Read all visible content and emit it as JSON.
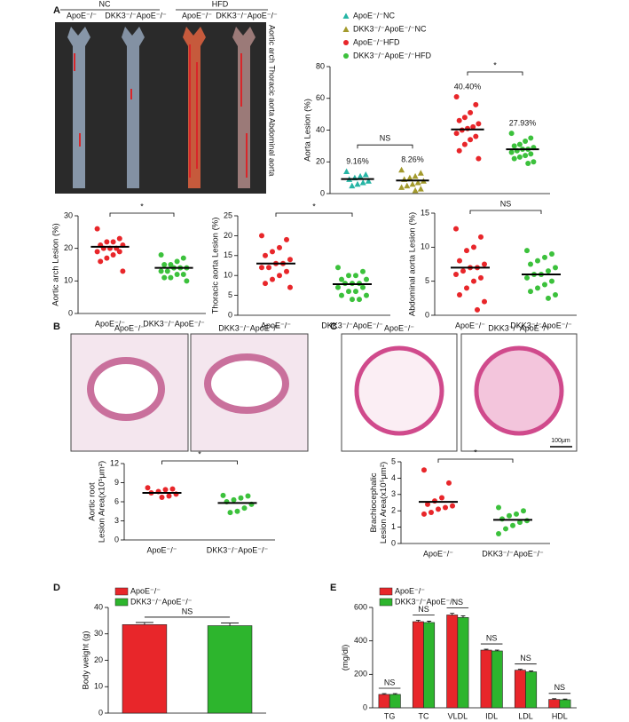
{
  "panel_labels": [
    "A",
    "B",
    "C",
    "D",
    "E"
  ],
  "images": {
    "aorta": {
      "groups": [
        "NC",
        "HFD"
      ],
      "labels": [
        "ApoE⁻/⁻",
        "DKK3⁻/⁻ApoE⁻/⁻",
        "ApoE⁻/⁻",
        "DKK3⁻/⁻ApoE⁻/⁻"
      ],
      "regions": "Aortic arch Thoracic aorta Abdominal aorta"
    },
    "aortic_root": {
      "labels": [
        "ApoE⁻/⁻",
        "DKK3⁻/⁻ApoE⁻/⁻"
      ]
    },
    "brachiocephalic": {
      "labels": [
        "ApoE⁻/⁻",
        "DKK3⁻/⁻ApoE⁻/⁻"
      ],
      "scale": "100μm"
    }
  },
  "chart_data": [
    {
      "type": "dot",
      "y_label": [
        "Aorta Lesion (%)"
      ],
      "ylim": [
        0,
        80
      ],
      "yticks": [
        0,
        20,
        40,
        60,
        80
      ],
      "groups": [
        {
          "name": "ApoE⁻/⁻NC",
          "color": "#26b5a5",
          "marker": "triangle",
          "values": [
            14,
            12,
            11,
            10,
            9,
            8,
            7,
            6,
            5
          ],
          "mean": 9.16,
          "mean_label": "9.16%"
        },
        {
          "name": "DKK3⁻/⁻ApoE⁻/⁻NC",
          "color": "#a39a2c",
          "marker": "triangle",
          "values": [
            15,
            13,
            11,
            10,
            9,
            8,
            7,
            6,
            5,
            4,
            3,
            2
          ],
          "mean": 8.26,
          "mean_label": "8.26%"
        },
        {
          "name": "ApoE⁻/⁻HFD",
          "color": "#e8262a",
          "marker": "circle",
          "values": [
            61,
            56,
            51,
            48,
            46,
            44,
            42,
            41,
            40,
            38,
            36,
            34,
            31,
            27,
            22
          ],
          "mean": 40.4,
          "mean_label": "40.40%"
        },
        {
          "name": "DKK3⁻/⁻ApoE⁻/⁻HFD",
          "color": "#3cc13c",
          "marker": "circle",
          "values": [
            38,
            35,
            33,
            31,
            30,
            29,
            28,
            28,
            27,
            26,
            25,
            24,
            23,
            22,
            20,
            19
          ],
          "mean": 27.93,
          "mean_label": "27.93%"
        }
      ],
      "annotations": [
        "NS",
        "*"
      ]
    },
    {
      "type": "dot",
      "y_label": [
        "Aortic arch Lesion (%)"
      ],
      "ylim": [
        0,
        30
      ],
      "yticks": [
        0,
        10,
        20,
        30
      ],
      "categories": [
        "ApoE⁻/⁻",
        "DKK3⁻/⁻ApoE⁻/⁻"
      ],
      "groups": [
        {
          "color": "#e8262a",
          "marker": "circle",
          "values": [
            26,
            23,
            22,
            22,
            21,
            21,
            20,
            20,
            20,
            19,
            19,
            18,
            17,
            16,
            13
          ],
          "mean": 20.5
        },
        {
          "color": "#3cc13c",
          "marker": "circle",
          "values": [
            18,
            17,
            16,
            15,
            15,
            14,
            14,
            14,
            13,
            13,
            12,
            12,
            11,
            11,
            10
          ],
          "mean": 14
        }
      ],
      "annotations": [
        "*"
      ]
    },
    {
      "type": "dot",
      "y_label": [
        "Thoracic aorta Lesion (%)"
      ],
      "ylim": [
        0,
        25
      ],
      "yticks": [
        0,
        5,
        10,
        15,
        20,
        25
      ],
      "categories": [
        "ApoE⁻/⁻",
        "DKK3⁻/⁻ApoE⁻/⁻"
      ],
      "groups": [
        {
          "color": "#e8262a",
          "marker": "circle",
          "values": [
            20,
            19,
            17,
            16,
            15,
            14,
            13,
            13,
            12,
            12,
            11,
            10,
            9,
            8,
            7
          ],
          "mean": 13
        },
        {
          "color": "#3cc13c",
          "marker": "circle",
          "values": [
            12,
            11,
            10,
            10,
            9,
            9,
            8,
            8,
            8,
            7,
            7,
            6,
            6,
            5,
            5,
            4,
            4
          ],
          "mean": 7.8
        }
      ],
      "annotations": [
        "*"
      ]
    },
    {
      "type": "dot",
      "y_label": [
        "Abdominal aorta Lesion (%)"
      ],
      "ylim": [
        0,
        15
      ],
      "yticks": [
        0,
        5,
        10,
        15
      ],
      "categories": [
        "ApoE⁻/⁻",
        "DKK3⁻/⁻ApoE⁻/⁻"
      ],
      "groups": [
        {
          "color": "#e8262a",
          "marker": "circle",
          "values": [
            12.7,
            11.5,
            10,
            9.5,
            8,
            7.5,
            7,
            7,
            6.5,
            6,
            5.5,
            5,
            4,
            3,
            2,
            0.8
          ],
          "mean": 7
        },
        {
          "color": "#3cc13c",
          "marker": "circle",
          "values": [
            9.5,
            9,
            8.5,
            8,
            7.5,
            7,
            6.5,
            6,
            6,
            5.5,
            5,
            4.5,
            4,
            3.5,
            3,
            2.5
          ],
          "mean": 6
        }
      ],
      "annotations": [
        "NS"
      ]
    },
    {
      "type": "dot",
      "y_label": [
        "Aortic root",
        "Lesion Area(x10⁵μm²)"
      ],
      "ylim": [
        0,
        12
      ],
      "yticks": [
        0,
        3,
        6,
        9,
        12
      ],
      "categories": [
        "ApoE⁻/⁻",
        "DKK3⁻/⁻ApoE⁻/⁻"
      ],
      "groups": [
        {
          "color": "#e8262a",
          "marker": "circle",
          "values": [
            8.2,
            8,
            7.9,
            7.6,
            7.4,
            7.2,
            6.9,
            6.7
          ],
          "mean": 7.4
        },
        {
          "color": "#3cc13c",
          "marker": "circle",
          "values": [
            7,
            6.9,
            6.6,
            6.3,
            6,
            5.6,
            5,
            4.5,
            4.3
          ],
          "mean": 5.8
        }
      ],
      "annotations": [
        "*"
      ]
    },
    {
      "type": "dot",
      "y_label": [
        "Brachiocephalic",
        "Lesion Area(x10⁵μm²)"
      ],
      "ylim": [
        0,
        5
      ],
      "yticks": [
        0,
        1,
        2,
        3,
        4,
        5
      ],
      "categories": [
        "ApoE⁻/⁻",
        "DKK3⁻/⁻ApoE⁻/⁻"
      ],
      "groups": [
        {
          "color": "#e8262a",
          "marker": "circle",
          "values": [
            4.5,
            3.7,
            2.8,
            2.6,
            2.4,
            2.3,
            2.2,
            2.1,
            1.9,
            1.8
          ],
          "mean": 2.55
        },
        {
          "color": "#3cc13c",
          "marker": "circle",
          "values": [
            2.2,
            2,
            1.8,
            1.7,
            1.5,
            1.4,
            1.3,
            1.1,
            0.9,
            0.6
          ],
          "mean": 1.45
        }
      ],
      "annotations": [
        "*"
      ]
    },
    {
      "type": "bar",
      "y_label": [
        "Body weight (g)"
      ],
      "ylim": [
        0,
        40
      ],
      "yticks": [
        0,
        10,
        20,
        30,
        40
      ],
      "categories": [
        null
      ],
      "series": [
        {
          "name": "ApoE⁻/⁻",
          "color": "#e8262a",
          "values": [
            33.5
          ],
          "errors": [
            0.8
          ]
        },
        {
          "name": "DKK3⁻/⁻ApoE⁻/⁻",
          "color": "#2db52d",
          "values": [
            33.1
          ],
          "errors": [
            1.0
          ]
        }
      ],
      "annotations": [
        "NS"
      ]
    },
    {
      "type": "bar",
      "y_label": [
        "(mg/dl)"
      ],
      "ylim": [
        0,
        600
      ],
      "yticks": [
        0,
        200,
        400,
        600
      ],
      "categories": [
        "TG",
        "TC",
        "VLDL",
        "IDL",
        "LDL",
        "HDL"
      ],
      "series": [
        {
          "name": "ApoE⁻/⁻",
          "color": "#e8262a",
          "values": [
            80,
            515,
            555,
            345,
            225,
            50
          ],
          "errors": [
            5,
            8,
            10,
            5,
            5,
            4
          ]
        },
        {
          "name": "DKK3⁻/⁻ApoE⁻/⁻",
          "color": "#2db52d",
          "values": [
            80,
            510,
            540,
            340,
            215,
            48
          ],
          "errors": [
            5,
            8,
            10,
            5,
            5,
            4
          ]
        }
      ],
      "annotations": [
        "NS",
        "NS",
        "NS",
        "NS",
        "NS",
        "NS"
      ]
    }
  ]
}
